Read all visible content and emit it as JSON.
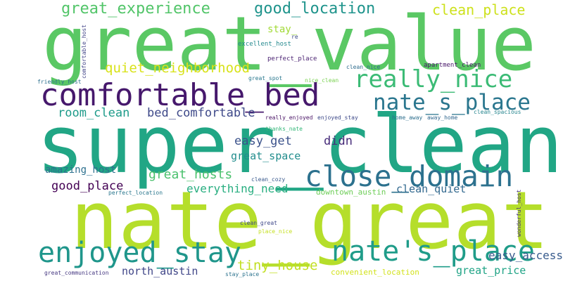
{
  "words": [
    {
      "text": "great_value",
      "color": "#5ac864"
    },
    {
      "text": "super_clean",
      "color": "#21a685"
    },
    {
      "text": "nate_great",
      "color": "#b5de2b"
    },
    {
      "text": "comfortable_bed",
      "color": "#46186c"
    },
    {
      "text": "close_domain",
      "color": "#2c718e"
    },
    {
      "text": "enjoyed_stay",
      "color": "#1f968b"
    },
    {
      "text": "nate's_place",
      "color": "#1f9c89"
    },
    {
      "text": "really_nice",
      "color": "#3bbb75"
    },
    {
      "text": "nate_s_place",
      "color": "#2a768e"
    },
    {
      "text": "great_experience",
      "color": "#52c569"
    },
    {
      "text": "good_location",
      "color": "#1f948c"
    },
    {
      "text": "clean_place",
      "color": "#cde11d"
    },
    {
      "text": "quiet_neighborhood",
      "color": "#d8e219"
    },
    {
      "text": "stay_",
      "color": "#a2da37"
    },
    {
      "text": "room_clean",
      "color": "#1e9b8a"
    },
    {
      "text": "bed_comfortable",
      "color": "#3e4989"
    },
    {
      "text": "easy_get",
      "color": "#3b528b"
    },
    {
      "text": "didn",
      "color": "#472c7a"
    },
    {
      "text": "great_space",
      "color": "#228d8d"
    },
    {
      "text": "amazing_host",
      "color": "#2d708e"
    },
    {
      "text": "great_hosts",
      "color": "#4ac16d"
    },
    {
      "text": "everything_need",
      "color": "#28ae80"
    },
    {
      "text": "good_place",
      "color": "#440154"
    },
    {
      "text": "clean_quiet",
      "color": "#31688e"
    },
    {
      "text": "easy_access",
      "color": "#375b8d"
    },
    {
      "text": "tiny_house",
      "color": "#c2df23"
    },
    {
      "text": "north_austin",
      "color": "#404688"
    },
    {
      "text": "great_price",
      "color": "#20a486"
    },
    {
      "text": "convenient_location",
      "color": "#d2e21b"
    },
    {
      "text": "downtown_austin",
      "color": "#6ece58"
    },
    {
      "text": "comfortable_host",
      "color": "#404387"
    },
    {
      "text": "re",
      "color": "#3e4c8a"
    },
    {
      "text": "excellent_host",
      "color": "#23898e"
    },
    {
      "text": "perfect_place",
      "color": "#481f70"
    },
    {
      "text": "apartment_clean",
      "color": "#481769"
    },
    {
      "text": "friendly_host",
      "color": "#2d718e"
    },
    {
      "text": "great_spot",
      "color": "#2a788e"
    },
    {
      "text": "nice_clean",
      "color": "#7ad151"
    },
    {
      "text": "clean_nice",
      "color": "#2f6c8e"
    },
    {
      "text": "clean_spacious",
      "color": "#25858e"
    },
    {
      "text": "really_enjoyed",
      "color": "#471063"
    },
    {
      "text": "enjoyed_stay",
      "color": "#3e4a89"
    },
    {
      "text": "home_away",
      "color": "#2e6f8e"
    },
    {
      "text": "away_home",
      "color": "#31678e"
    },
    {
      "text": "thanks_nate",
      "color": "#35b779"
    },
    {
      "text": "clean_cozy",
      "color": "#38588c"
    },
    {
      "text": "perfect_location",
      "color": "#2a778e"
    },
    {
      "text": "wonderful_host",
      "color": "#46307e"
    },
    {
      "text": "clean_great",
      "color": "#3f4889"
    },
    {
      "text": "place_nice",
      "color": "#c5e021"
    },
    {
      "text": "great_communication",
      "color": "#453781"
    },
    {
      "text": "stay_place",
      "color": "#2c738e"
    }
  ]
}
